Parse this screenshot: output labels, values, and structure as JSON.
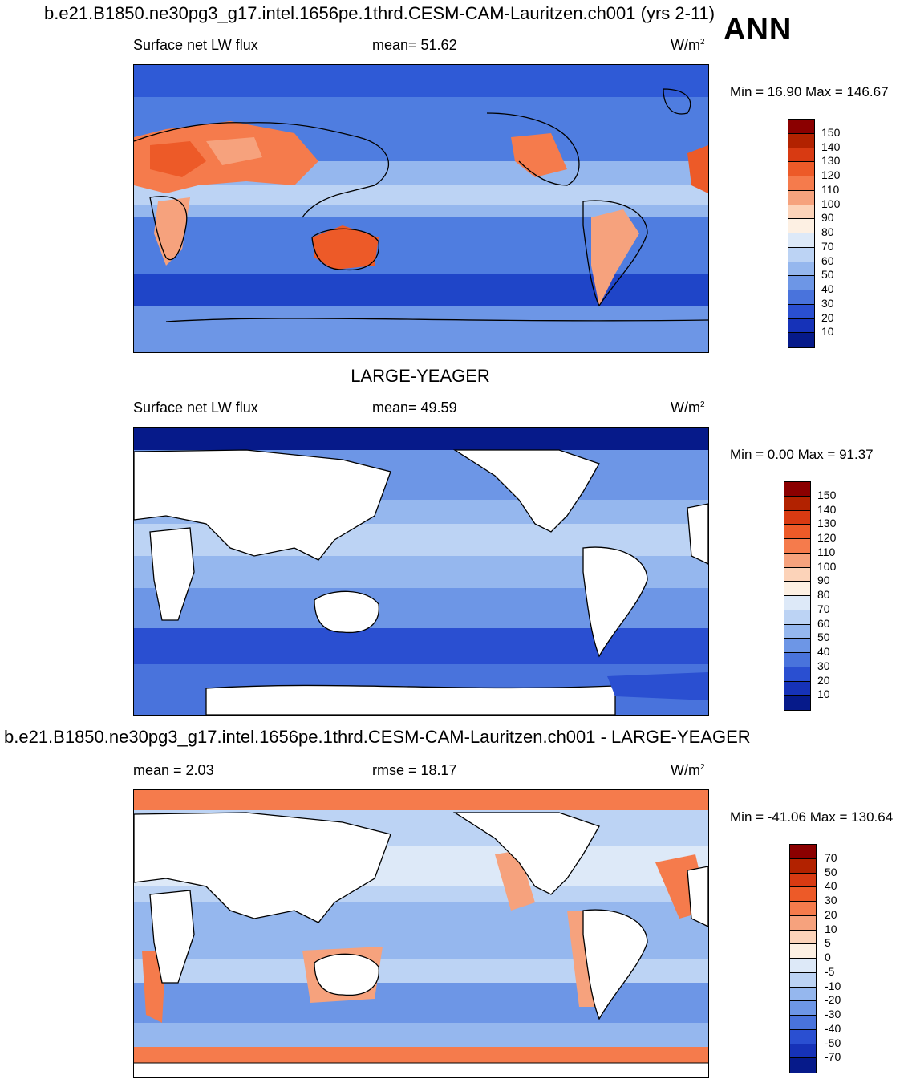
{
  "header": {
    "case_title": "b.e21.B1850.ne30pg3_g17.intel.1656pe.1thrd.CESM-CAM-Lauritzen.ch001 (yrs 2-11)",
    "season": "ANN"
  },
  "panels": [
    {
      "id": "model",
      "left_label": "Surface net LW flux",
      "center_label": "mean=  51.62",
      "units": "W/m",
      "units_sup": "2",
      "minmax": "Min =  16.90 Max = 146.67",
      "colorbar_ticks": [
        "150",
        "140",
        "130",
        "120",
        "110",
        "100",
        "90",
        "80",
        "70",
        "60",
        "50",
        "40",
        "30",
        "20",
        "10"
      ],
      "colorbar_colors": [
        "#8b0000",
        "#b22200",
        "#d83a12",
        "#ed5a28",
        "#f57b4c",
        "#f6a27d",
        "#fcd3b9",
        "#fdf0e3",
        "#dde9f8",
        "#bcd3f4",
        "#95b7ee",
        "#6d96e6",
        "#4973dc",
        "#2a4fd1",
        "#1632b8",
        "#061a8a"
      ]
    },
    {
      "id": "obs",
      "title": "LARGE-YEAGER",
      "left_label": "Surface net LW flux",
      "center_label": "mean=  49.59",
      "units": "W/m",
      "units_sup": "2",
      "minmax": "Min =   0.00 Max =  91.37",
      "colorbar_ticks": [
        "150",
        "140",
        "130",
        "120",
        "110",
        "100",
        "90",
        "80",
        "70",
        "60",
        "50",
        "40",
        "30",
        "20",
        "10"
      ],
      "colorbar_colors": [
        "#8b0000",
        "#b22200",
        "#d83a12",
        "#ed5a28",
        "#f57b4c",
        "#f6a27d",
        "#fcd3b9",
        "#fdf0e3",
        "#dde9f8",
        "#bcd3f4",
        "#95b7ee",
        "#6d96e6",
        "#4973dc",
        "#2a4fd1",
        "#1632b8",
        "#061a8a"
      ]
    },
    {
      "id": "diff",
      "title": "b.e21.B1850.ne30pg3_g17.intel.1656pe.1thrd.CESM-CAM-Lauritzen.ch001 - LARGE-YEAGER",
      "left_label": "mean =   2.03",
      "center_label": "rmse =  18.17",
      "units": "W/m",
      "units_sup": "2",
      "minmax": "Min = -41.06 Max = 130.64",
      "colorbar_ticks": [
        "70",
        "50",
        "40",
        "30",
        "20",
        "10",
        "5",
        "0",
        "-5",
        "-10",
        "-20",
        "-30",
        "-40",
        "-50",
        "-70"
      ],
      "colorbar_colors": [
        "#8b0000",
        "#b22200",
        "#d83a12",
        "#ed5a28",
        "#f57b4c",
        "#f6a27d",
        "#fcd3b9",
        "#fdf0e3",
        "#dde9f8",
        "#bcd3f4",
        "#95b7ee",
        "#6d96e6",
        "#4973dc",
        "#2a4fd1",
        "#1632b8",
        "#061a8a"
      ]
    }
  ]
}
